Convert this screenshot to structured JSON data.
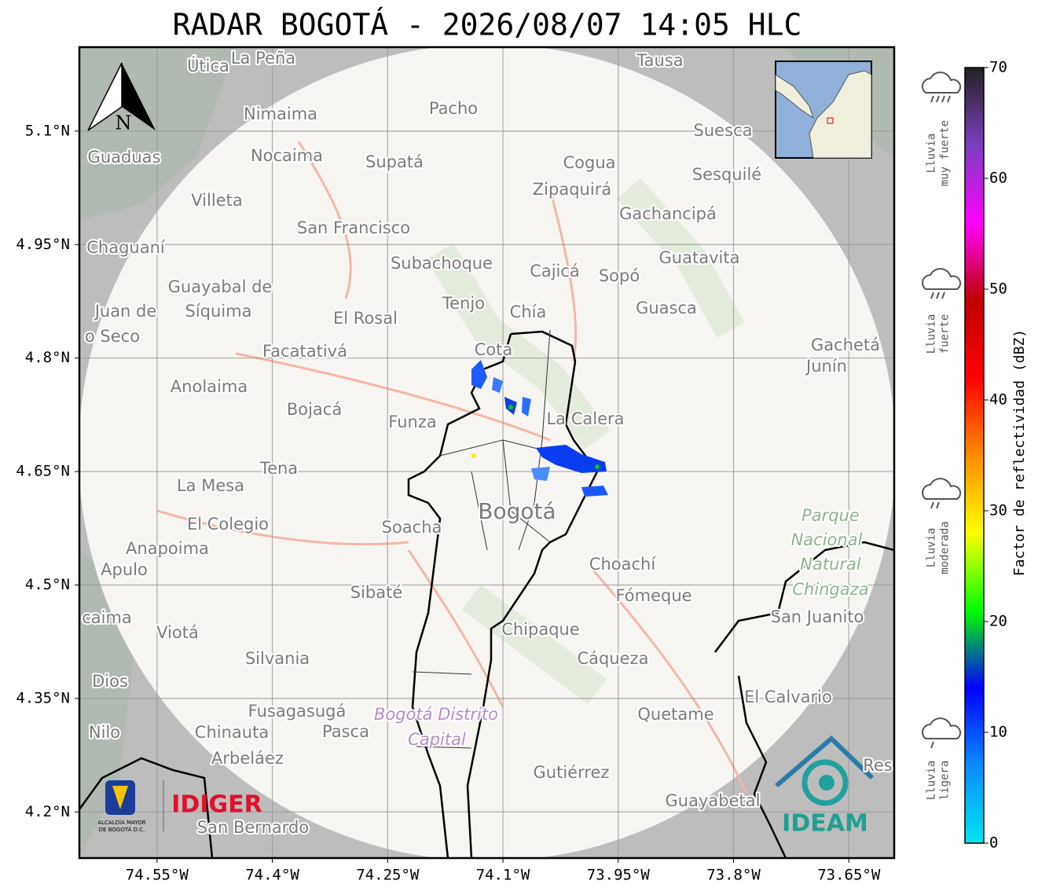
{
  "title": "RADAR BOGOTÁ - 2026/08/07 14:05 HLC",
  "map": {
    "xlim": [
      -74.651,
      -73.591
    ],
    "ylim": [
      4.139,
      5.211
    ],
    "grid": true,
    "north_label": "N",
    "xticks": [
      {
        "value": -74.55,
        "label": "74.55°W"
      },
      {
        "value": -74.4,
        "label": "74.4°W"
      },
      {
        "value": -74.25,
        "label": "74.25°W"
      },
      {
        "value": -74.1,
        "label": "74.1°W"
      },
      {
        "value": -73.95,
        "label": "73.95°W"
      },
      {
        "value": -73.8,
        "label": "73.8°W"
      },
      {
        "value": -73.65,
        "label": "73.65°W"
      }
    ],
    "yticks": [
      {
        "value": 5.1,
        "label": "5.1°N"
      },
      {
        "value": 4.95,
        "label": "4.95°N"
      },
      {
        "value": 4.8,
        "label": "4.8°N"
      },
      {
        "value": 4.65,
        "label": "4.65°N"
      },
      {
        "value": 4.5,
        "label": "4.5°N"
      },
      {
        "value": 4.35,
        "label": "4.35°N"
      },
      {
        "value": 4.2,
        "label": "4.2°N"
      }
    ]
  },
  "colorbar": {
    "label": "Factor de reflectividad (dBZ)",
    "lim": [
      0,
      70
    ],
    "ticks": [
      0,
      10,
      20,
      30,
      40,
      50,
      60,
      70
    ],
    "colors": [
      "#00e5ee",
      "#0a8cff",
      "#0000ff",
      "#00ff00",
      "#ffff00",
      "#ff8c00",
      "#ff0000",
      "#c00000",
      "#ff00ff",
      "#7b3fbf",
      "#222222"
    ]
  },
  "rain_categories": [
    [
      "Lluvia",
      "muy fuerte"
    ],
    [
      "Lluvia",
      "fuerte"
    ],
    [
      "Lluvia",
      "moderada"
    ],
    [
      "Lluvia",
      "ligera"
    ]
  ],
  "places": [
    "Útica",
    "La Peña",
    "Tausa",
    "Pacho",
    "Nimaima",
    "Guaduas",
    "Nocaima",
    "Supatá",
    "Cogua",
    "Suesca",
    "Sesquilé",
    "Zipaquirá",
    "Villeta",
    "Gachancipá",
    "San Francisco",
    "Chaguaní",
    "Guatavita",
    "Subachoque",
    "Cajicá",
    "Sopó",
    "Guayabal de",
    "Síquima",
    "Juan de",
    "Tenjo",
    "Chía",
    "Guasca",
    "El Rosal",
    "o Seco",
    "Facatativá",
    "Cota",
    "Gachetá",
    "Junín",
    "Anolaima",
    "Bojacá",
    "Funza",
    "La Calera",
    "Tena",
    "La Mesa",
    "El Colegio",
    "Soacha",
    "Bogotá",
    "Parque",
    "Nacional",
    "Natural",
    "Chingaza",
    "Anapoima",
    "Apulo",
    "Choachí",
    "Sibaté",
    "Fómeque",
    "San Juanito",
    "caima",
    "Viotá",
    "Chipaque",
    "Cáqueza",
    "Silvania",
    "Dios",
    "El Calvario",
    "Quetame",
    "Fusagasugá",
    "Bogotá Distrito",
    "Capital",
    "Nilo",
    "Chinauta",
    "Pasca",
    "Arbeláez",
    "Gutiérrez",
    "Res",
    "Guayabetal",
    "San Bernardo"
  ],
  "logos": {
    "idiger": "IDIGER",
    "ideam": "IDEAM",
    "alcaldia": [
      "ALCALDÍA MAYOR",
      "DE BOGOTÁ D.C."
    ]
  }
}
